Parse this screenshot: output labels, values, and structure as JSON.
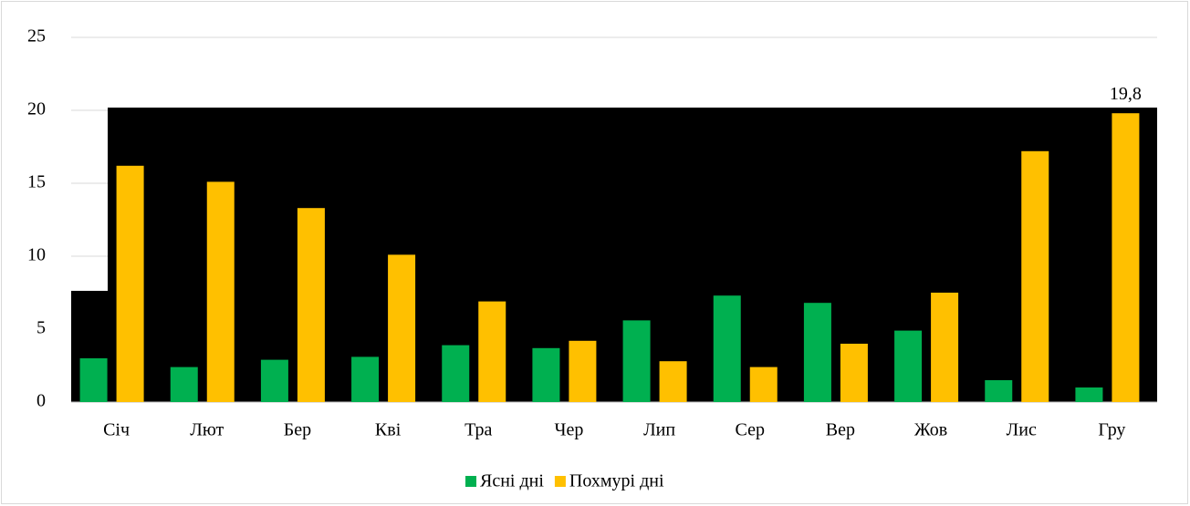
{
  "chart_data": {
    "type": "bar",
    "categories": [
      "Січ",
      "Лют",
      "Бер",
      "Кві",
      "Тра",
      "Чер",
      "Лип",
      "Сер",
      "Вер",
      "Жов",
      "Лис",
      "Гру"
    ],
    "series": [
      {
        "name": "Ясні дні",
        "color": "#00b050",
        "values": [
          3.0,
          2.4,
          2.9,
          3.1,
          3.9,
          3.7,
          5.6,
          7.3,
          6.8,
          4.9,
          1.5,
          1.0
        ]
      },
      {
        "name": "Похмурі дні",
        "color": "#ffc000",
        "values": [
          16.2,
          15.1,
          13.3,
          10.1,
          6.9,
          4.2,
          2.8,
          2.4,
          4.0,
          7.5,
          17.2,
          19.8
        ],
        "value_labels": [
          null,
          null,
          null,
          null,
          null,
          null,
          null,
          null,
          null,
          null,
          null,
          "19,8"
        ]
      }
    ],
    "ylim": [
      0,
      25
    ],
    "yticks": [
      0,
      5,
      10,
      15,
      20,
      25
    ],
    "grid": true,
    "legend": "bottom"
  }
}
